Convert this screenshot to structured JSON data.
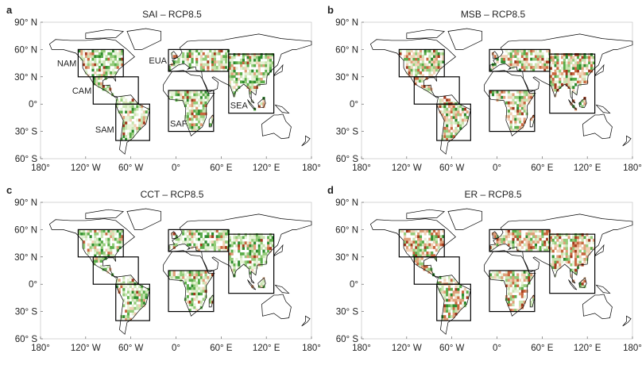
{
  "figure": {
    "panels": [
      {
        "letter": "a",
        "title": "SAI – RCP8.5",
        "show_region_labels": true,
        "brown_share": 0.25
      },
      {
        "letter": "b",
        "title": "MSB – RCP8.5",
        "show_region_labels": false,
        "brown_share": 0.45
      },
      {
        "letter": "c",
        "title": "CCT – RCP8.5",
        "show_region_labels": false,
        "brown_share": 0.2
      },
      {
        "letter": "d",
        "title": "ER – RCP8.5",
        "show_region_labels": false,
        "brown_share": 0.5
      }
    ],
    "y_ticks": [
      {
        "lat": 90,
        "label": "90° N"
      },
      {
        "lat": 60,
        "label": "60° N"
      },
      {
        "lat": 30,
        "label": "30° N"
      },
      {
        "lat": 0,
        "label": "0°"
      },
      {
        "lat": -30,
        "label": "30° S"
      },
      {
        "lat": -60,
        "label": "60° S"
      }
    ],
    "x_ticks": [
      {
        "lon": -180,
        "label": "180°"
      },
      {
        "lon": -120,
        "label": "120° W"
      },
      {
        "lon": -60,
        "label": "60° W"
      },
      {
        "lon": 0,
        "label": "0°"
      },
      {
        "lon": 60,
        "label": "60° E"
      },
      {
        "lon": 120,
        "label": "120° E"
      },
      {
        "lon": 180,
        "label": "180°"
      }
    ],
    "lon_range": [
      -180,
      180
    ],
    "lat_range": [
      -60,
      90
    ],
    "regions": [
      {
        "name": "NAM",
        "lon": [
          -130,
          -70
        ],
        "lat": [
          30,
          60
        ],
        "label_pos": "left"
      },
      {
        "name": "CAM",
        "lon": [
          -110,
          -50
        ],
        "lat": [
          0,
          30
        ],
        "label_pos": "left"
      },
      {
        "name": "SAM",
        "lon": [
          -80,
          -35
        ],
        "lat": [
          -40,
          0
        ],
        "label_pos": "left-bottom"
      },
      {
        "name": "EUA",
        "lon": [
          -10,
          70
        ],
        "lat": [
          36,
          60
        ],
        "label_pos": "left"
      },
      {
        "name": "SAF",
        "lon": [
          -10,
          50
        ],
        "lat": [
          -30,
          15
        ],
        "label_pos": "inside-bottom-left"
      },
      {
        "name": "SEA",
        "lon": [
          70,
          130
        ],
        "lat": [
          -10,
          55
        ],
        "label_pos": "inside-bottom-left"
      }
    ],
    "colors": {
      "greens": [
        "#2e8b2e",
        "#5aad4a",
        "#94cc7a",
        "#c8e4b0",
        "#e6f2d6"
      ],
      "browns": [
        "#a33a1e",
        "#c8663e",
        "#e0a07a",
        "#f0d0b4"
      ],
      "coast": "#000000",
      "box": "#000000"
    }
  }
}
